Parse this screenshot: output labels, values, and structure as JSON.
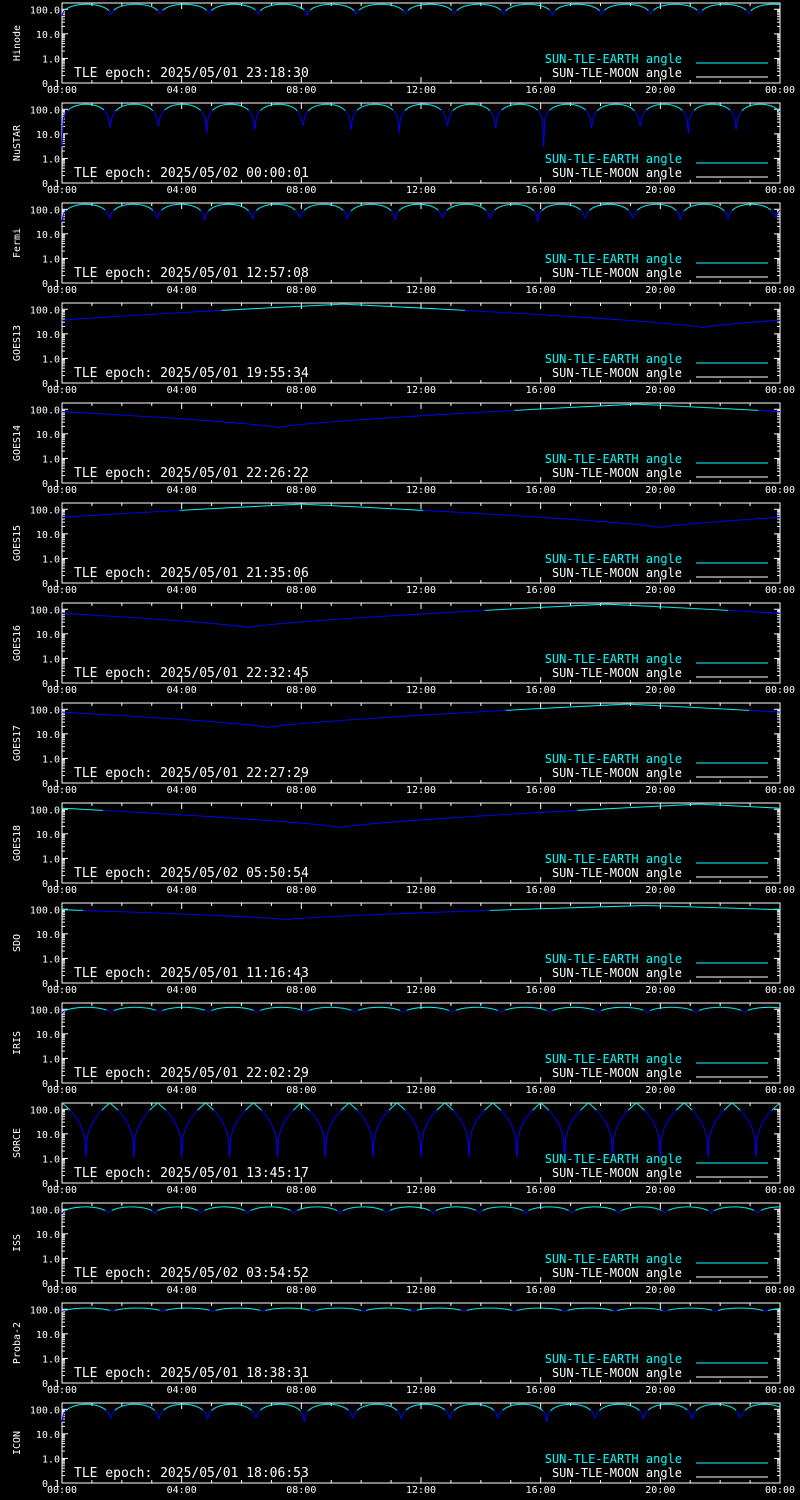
{
  "colors": {
    "background": "#000000",
    "axes": "#ffffff",
    "sun_earth": "#00ffff",
    "sun_moon": "#ffffff",
    "curve_low": "#0000ff"
  },
  "chart_data": [
    {
      "type": "line",
      "satellite": "Hinode",
      "tle_epoch": "TLE epoch: 2025/05/01 23:18:30",
      "pattern": "orbit",
      "period_h": 1.64,
      "min": 55,
      "max": 160
    },
    {
      "type": "line",
      "satellite": "NuSTAR",
      "tle_epoch": "TLE epoch: 2025/05/02 00:00:01",
      "pattern": "orbit",
      "period_h": 1.61,
      "min": 3,
      "max": 160
    },
    {
      "type": "line",
      "satellite": "Fermi",
      "tle_epoch": "TLE epoch: 2025/05/01 12:57:08",
      "pattern": "orbit",
      "period_h": 1.59,
      "min": 30,
      "max": 160
    },
    {
      "type": "line",
      "satellite": "GOES13",
      "tle_epoch": "TLE epoch: 2025/05/01 19:55:34",
      "pattern": "daily",
      "min_time_h": 21.4,
      "min": 18,
      "max": 162,
      "start": 40
    },
    {
      "type": "line",
      "satellite": "GOES14",
      "tle_epoch": "TLE epoch: 2025/05/01 22:26:22",
      "pattern": "daily",
      "min_time_h": 7.2,
      "min": 18,
      "max": 162,
      "start": 120
    },
    {
      "type": "line",
      "satellite": "GOES15",
      "tle_epoch": "TLE epoch: 2025/05/01 21:35:06",
      "pattern": "daily",
      "min_time_h": 20.0,
      "min": 18,
      "max": 162,
      "start": 60
    },
    {
      "type": "line",
      "satellite": "GOES16",
      "tle_epoch": "TLE epoch: 2025/05/01 22:32:45",
      "pattern": "daily",
      "min_time_h": 6.2,
      "min": 18,
      "max": 162,
      "start": 90
    },
    {
      "type": "line",
      "satellite": "GOES17",
      "tle_epoch": "TLE epoch: 2025/05/01 22:27:29",
      "pattern": "daily",
      "min_time_h": 6.9,
      "min": 18,
      "max": 162,
      "start": 110
    },
    {
      "type": "line",
      "satellite": "GOES18",
      "tle_epoch": "TLE epoch: 2025/05/02 05:50:54",
      "pattern": "daily",
      "min_time_h": 9.3,
      "min": 18,
      "max": 162,
      "start": 140
    },
    {
      "type": "line",
      "satellite": "SDO",
      "tle_epoch": "TLE epoch: 2025/05/01 11:16:43",
      "pattern": "daily",
      "min_time_h": 7.5,
      "min": 38,
      "max": 142,
      "start": 130
    },
    {
      "type": "line",
      "satellite": "IRIS",
      "tle_epoch": "TLE epoch: 2025/05/01 22:02:29",
      "pattern": "orbit",
      "period_h": 1.63,
      "min": 70,
      "max": 120
    },
    {
      "type": "line",
      "satellite": "SORCE",
      "tle_epoch": "TLE epoch: 2025/05/01 13:45:17",
      "pattern": "dips",
      "period_h": 1.6,
      "min": 1.1,
      "max": 180
    },
    {
      "type": "line",
      "satellite": "ISS",
      "tle_epoch": "TLE epoch: 2025/05/02 03:54:52",
      "pattern": "orbit",
      "period_h": 1.55,
      "min": 65,
      "max": 125
    },
    {
      "type": "line",
      "satellite": "Proba-2",
      "tle_epoch": "TLE epoch: 2025/05/01 18:38:31",
      "pattern": "orbit",
      "period_h": 1.68,
      "min": 78,
      "max": 112
    },
    {
      "type": "line",
      "satellite": "ICON",
      "tle_epoch": "TLE epoch: 2025/05/01 18:06:53",
      "pattern": "orbit",
      "period_h": 1.62,
      "min": 30,
      "max": 160
    }
  ],
  "shared": {
    "x_ticks": [
      "00:00",
      "04:00",
      "08:00",
      "12:00",
      "16:00",
      "20:00",
      "00:00"
    ],
    "x_range_hours": [
      0,
      24
    ],
    "y_scale": "log",
    "y_range": [
      0.1,
      180
    ],
    "y_ticks": [
      "100.0",
      "10.0",
      "1.0",
      "0.1"
    ],
    "legend": {
      "sun_earth": "SUN-TLE-EARTH angle",
      "sun_moon": "SUN-TLE-MOON angle"
    }
  }
}
